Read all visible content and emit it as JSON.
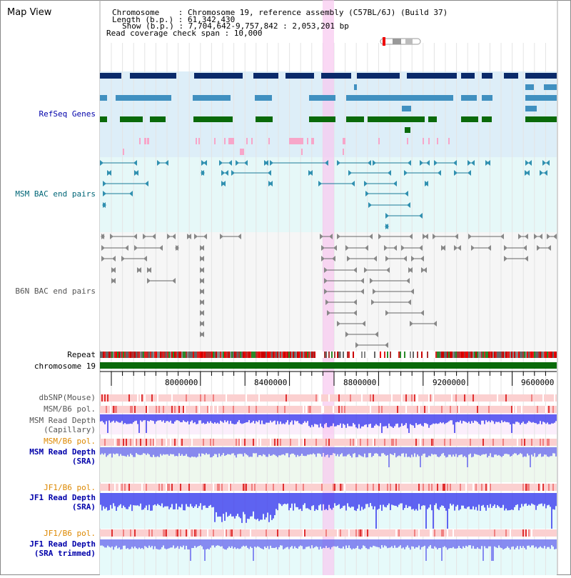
{
  "header": {
    "app_title": "Map View",
    "info_lines": [
      "Chromosome    : Chromosome 19, reference assembly (C57BL/6J) (Build 37)",
      "Length (b.p.) : 61,342,430",
      "Show (b.p.) : 7,704,642-9,757,842 : 2,053,201 bp",
      "Read coverage check span : 10,000"
    ]
  },
  "tracks": {
    "refseq": "RefSeq Genes",
    "msm_bac": "MSM BAC end pairs",
    "b6n_bac": "B6N BAC end pairs",
    "repeat": "Repeat",
    "chromosome": "chromosome 19",
    "dbsnp": "dbSNP(Mouse)",
    "msm_b6_pol_top": "MSM/B6 pol.",
    "msm_depth_cap_1": "MSM Read Depth",
    "msm_depth_cap_2": "(Capillary)",
    "msm_b6_pol": "MSM/B6 pol.",
    "msm_depth_sra_1": "MSM Read Depth",
    "msm_depth_sra_2": "(SRA)",
    "jf1_b6_pol": "JF1/B6 pol.",
    "jf1_depth_sra_1": "JF1 Read Depth",
    "jf1_depth_sra_2": "(SRA)",
    "jf1_b6_pol_2": "JF1/B6 pol.",
    "jf1_depth_trim_1": "JF1 Read Depth",
    "jf1_depth_trim_2": "(SRA trimmed)"
  },
  "axis": {
    "ticks": [
      "8000000",
      "8400000",
      "8800000",
      "9200000",
      "9600000"
    ]
  },
  "colors": {
    "refseq_bg": "#ddeef8",
    "bac_bg": "#e6f8f8",
    "gene_dark": "#0a2a6a",
    "gene_mid": "#4090c0",
    "gene_green": "#0a6a0a",
    "highlight": "#f8c8f0",
    "chromosome_bar": "#0a6a0a",
    "depth_blue": "#3333ee"
  }
}
